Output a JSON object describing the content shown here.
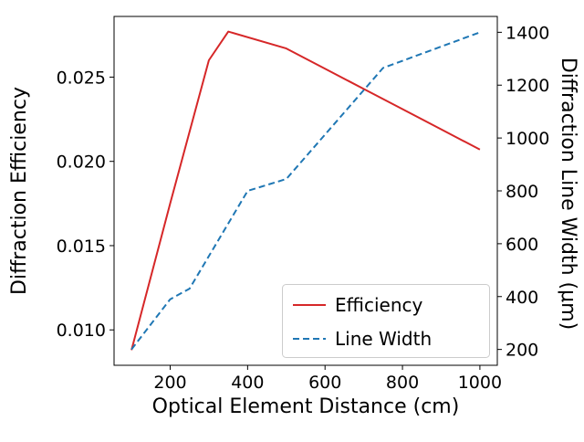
{
  "chart_data": {
    "type": "line",
    "title": "",
    "xlabel": "Optical Element Distance (cm)",
    "ylabel_left": "Diffraction Efficiency",
    "ylabel_right": "Diffraction Line Width (μm)",
    "xlim": [
      55,
      1045
    ],
    "ylim_left": [
      0.0079,
      0.0286
    ],
    "ylim_right": [
      140,
      1460
    ],
    "grid": false,
    "background": "#ffffff",
    "x_ticks": [
      {
        "label": "200",
        "value": 200
      },
      {
        "label": "400",
        "value": 400
      },
      {
        "label": "600",
        "value": 600
      },
      {
        "label": "800",
        "value": 800
      },
      {
        "label": "1000",
        "value": 1000
      }
    ],
    "y_ticks_left": [
      {
        "label": "0.010",
        "value": 0.01
      },
      {
        "label": "0.015",
        "value": 0.015
      },
      {
        "label": "0.020",
        "value": 0.02
      },
      {
        "label": "0.025",
        "value": 0.025
      }
    ],
    "y_ticks_right": [
      {
        "label": "200",
        "value": 200
      },
      {
        "label": "400",
        "value": 400
      },
      {
        "label": "600",
        "value": 600
      },
      {
        "label": "800",
        "value": 800
      },
      {
        "label": "1000",
        "value": 1000
      },
      {
        "label": "1200",
        "value": 1200
      },
      {
        "label": "1400",
        "value": 1400
      }
    ],
    "series": [
      {
        "name": "Efficiency",
        "axis": "left",
        "color": "#d62728",
        "style": "solid",
        "x": [
          100,
          200,
          300,
          350,
          500,
          600,
          700,
          800,
          900,
          1000
        ],
        "y": [
          0.0088,
          0.0175,
          0.026,
          0.0277,
          0.0267,
          0.0255,
          0.0243,
          0.0231,
          0.0219,
          0.0207
        ]
      },
      {
        "name": "Line Width",
        "axis": "right",
        "color": "#1f77b4",
        "style": "dashed",
        "x": [
          100,
          200,
          250,
          400,
          500,
          750,
          1000
        ],
        "y": [
          200,
          390,
          430,
          800,
          845,
          1265,
          1400
        ]
      }
    ],
    "legend": {
      "position": "lower right",
      "entries": [
        {
          "label": "Efficiency",
          "color": "#d62728",
          "style": "solid"
        },
        {
          "label": "Line Width",
          "color": "#1f77b4",
          "style": "dashed"
        }
      ]
    }
  }
}
